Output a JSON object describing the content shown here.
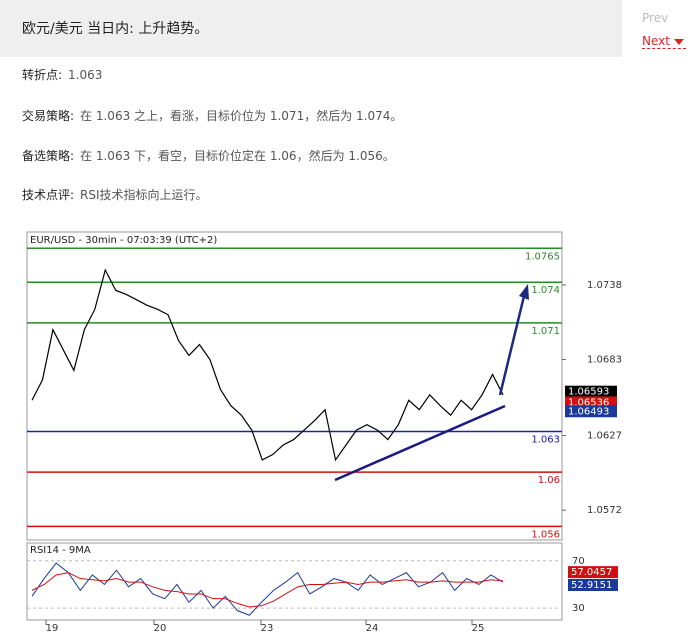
{
  "header": {
    "title": "欧元/美元 当日内: 上升趋势。"
  },
  "nav": {
    "prev": "Prev",
    "next": "Next"
  },
  "paragraphs": [
    {
      "label": "转折点:",
      "text": "1.063"
    },
    {
      "label": "交易策略:",
      "text": "在 1.063 之上，看涨，目标价位为 1.071，然后为 1.074。"
    },
    {
      "label": "备选策略:",
      "text": "在 1.063 下，看空，目标价位定在 1.06，然后为 1.056。"
    },
    {
      "label": "技术点评:",
      "text": "RSI技术指标向上运行。"
    }
  ],
  "chart": {
    "title": "EUR/USD - 30min - 07:03:39 (UTC+2)",
    "ylim": [
      1.055,
      1.0777
    ],
    "yticks": [
      1.0738,
      1.0683,
      1.0627,
      1.0572
    ],
    "color": "#000000",
    "values": [
      1.0653,
      1.0668,
      1.0705,
      1.069,
      1.0675,
      1.0705,
      1.072,
      1.0749,
      1.0734,
      1.0731,
      1.0727,
      1.0723,
      1.072,
      1.0716,
      1.0697,
      1.0686,
      1.0694,
      1.0683,
      1.0661,
      1.0649,
      1.0642,
      1.0631,
      1.0609,
      1.0613,
      1.062,
      1.0624,
      1.0631,
      1.0638,
      1.0646,
      1.0609,
      1.062,
      1.0631,
      1.0635,
      1.0631,
      1.0624,
      1.0635,
      1.0653,
      1.0646,
      1.0657,
      1.0649,
      1.0642,
      1.0653,
      1.0646,
      1.0657,
      1.0672,
      1.0657
    ],
    "levels": [
      {
        "value": 1.0765,
        "color": "#2a8a2a"
      },
      {
        "value": 1.074,
        "color": "#2a8a2a"
      },
      {
        "value": 1.071,
        "color": "#2a8a2a"
      },
      {
        "value": 1.063,
        "color": "#2020a0"
      },
      {
        "value": 1.06,
        "color": "#d01010"
      },
      {
        "value": 1.056,
        "color": "#d01010"
      }
    ],
    "tags": [
      {
        "value": 1.06593,
        "color": "#000000"
      },
      {
        "value": 1.06536,
        "color": "#d01010"
      },
      {
        "value": 1.06493,
        "color": "#1a3a9a"
      }
    ],
    "dates": [
      "19",
      "20",
      "23",
      "24",
      "25"
    ],
    "rsi": {
      "title": "RSI14 - 9MA",
      "ylim": [
        20,
        85
      ],
      "yticks": [
        70,
        30
      ],
      "values": [
        40,
        55,
        68,
        60,
        45,
        58,
        50,
        62,
        48,
        55,
        42,
        38,
        50,
        35,
        45,
        30,
        40,
        28,
        24,
        35,
        45,
        52,
        60,
        42,
        48,
        55,
        52,
        45,
        58,
        50,
        55,
        60,
        48,
        52,
        60,
        45,
        55,
        50,
        58,
        52
      ],
      "ma": [
        45,
        50,
        58,
        60,
        55,
        54,
        53,
        55,
        52,
        52,
        48,
        45,
        44,
        42,
        42,
        38,
        38,
        34,
        31,
        32,
        36,
        42,
        48,
        50,
        50,
        51,
        52,
        50,
        52,
        52,
        53,
        54,
        52,
        52,
        53,
        52,
        52,
        52,
        54,
        53
      ],
      "tags": [
        {
          "value": 57.0457,
          "color": "#d01010"
        },
        {
          "value": 52.9151,
          "color": "#1a3a9a"
        }
      ]
    }
  }
}
